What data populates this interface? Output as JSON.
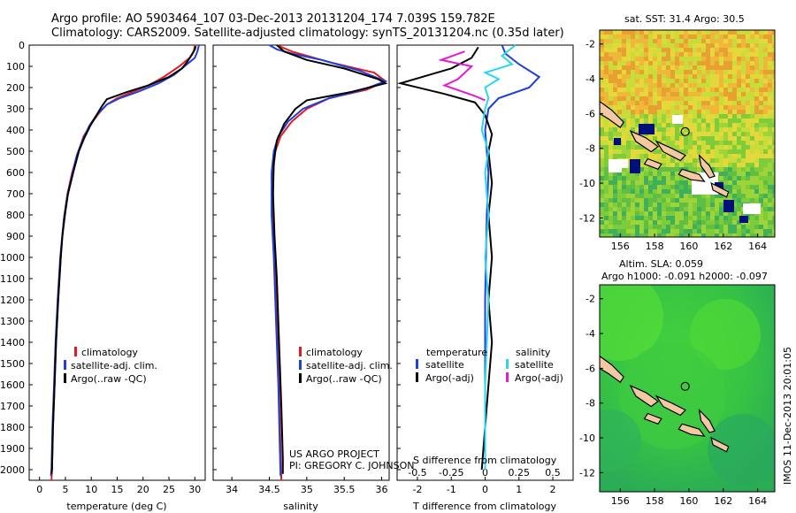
{
  "header": {
    "line1": "Argo profile: AO 5903464_107 03-Dec-2013 20131204_174 7.039S 159.782E",
    "line2": "Climatology: CARS2009. Satellite-adjusted climatology: synTS_20131204.nc (0.35d later)"
  },
  "colors": {
    "climatology": "#e41a1c",
    "satellite": "#1f3fe0",
    "argo": "#000000",
    "sat_salt": "#29d6f0",
    "argo_salt": "#e617d6"
  },
  "depth_axis": {
    "ticks": [
      "0",
      "100",
      "200",
      "300",
      "400",
      "500",
      "600",
      "700",
      "800",
      "900",
      "1000",
      "1100",
      "1200",
      "1300",
      "1400",
      "1500",
      "1600",
      "1700",
      "1800",
      "1900",
      "2000"
    ],
    "max": 2050
  },
  "chart_data": [
    {
      "type": "line",
      "name": "temperature-profile",
      "xlabel": "temperature (deg C)",
      "ylabel": "depth",
      "xlim": [
        -2,
        32
      ],
      "ylim": [
        2050,
        0
      ],
      "xticks": [
        "0",
        "5",
        "10",
        "15",
        "20",
        "25",
        "30"
      ],
      "legend": [
        "climatology",
        "satellite-adj. clim.",
        "Argo(..raw -QC)"
      ],
      "series": [
        {
          "name": "climatology",
          "color": "#e41a1c",
          "points": [
            [
              30,
              0
            ],
            [
              29.8,
              30
            ],
            [
              29,
              60
            ],
            [
              27,
              100
            ],
            [
              24,
              150
            ],
            [
              21,
              190
            ],
            [
              18,
              220
            ],
            [
              15,
              250
            ],
            [
              13,
              280
            ],
            [
              11.5,
              320
            ],
            [
              10,
              370
            ],
            [
              8.5,
              430
            ],
            [
              7.5,
              500
            ],
            [
              6.3,
              600
            ],
            [
              5.4,
              700
            ],
            [
              4.8,
              800
            ],
            [
              4.4,
              900
            ],
            [
              4.1,
              1000
            ],
            [
              3.6,
              1200
            ],
            [
              3.2,
              1400
            ],
            [
              2.9,
              1600
            ],
            [
              2.6,
              1800
            ],
            [
              2.4,
              2000
            ],
            [
              2.3,
              2050
            ]
          ]
        },
        {
          "name": "satellite-adj. clim.",
          "color": "#1f3fe0",
          "points": [
            [
              30.8,
              0
            ],
            [
              30.5,
              30
            ],
            [
              30,
              60
            ],
            [
              28,
              100
            ],
            [
              26,
              140
            ],
            [
              23,
              180
            ],
            [
              19,
              220
            ],
            [
              15.5,
              250
            ],
            [
              13,
              280
            ],
            [
              11,
              330
            ],
            [
              9.6,
              380
            ],
            [
              8.3,
              450
            ],
            [
              7.2,
              520
            ],
            [
              6.2,
              620
            ],
            [
              5.3,
              720
            ],
            [
              4.7,
              820
            ],
            [
              4.3,
              920
            ],
            [
              4.0,
              1000
            ],
            [
              3.5,
              1200
            ],
            [
              3.1,
              1400
            ],
            [
              2.8,
              1600
            ],
            [
              2.5,
              1800
            ],
            [
              2.3,
              2000
            ],
            [
              2.2,
              2030
            ]
          ]
        },
        {
          "name": "Argo(..raw -QC)",
          "color": "#000000",
          "points": [
            [
              30.2,
              5
            ],
            [
              30,
              20
            ],
            [
              29.3,
              50
            ],
            [
              28.5,
              80
            ],
            [
              27.5,
              110
            ],
            [
              25,
              150
            ],
            [
              21,
              190
            ],
            [
              17,
              220
            ],
            [
              13,
              255
            ],
            [
              12,
              290
            ],
            [
              11,
              330
            ],
            [
              9.8,
              380
            ],
            [
              8.6,
              440
            ],
            [
              7.6,
              500
            ],
            [
              6.5,
              600
            ],
            [
              5.5,
              700
            ],
            [
              4.9,
              800
            ],
            [
              4.4,
              900
            ],
            [
              4.1,
              1000
            ],
            [
              3.6,
              1200
            ],
            [
              3.2,
              1400
            ],
            [
              2.9,
              1600
            ],
            [
              2.6,
              1800
            ],
            [
              2.4,
              2000
            ],
            [
              2.3,
              2020
            ]
          ]
        }
      ]
    },
    {
      "type": "line",
      "name": "salinity-profile",
      "xlabel": "salinity",
      "xlim": [
        33.75,
        36.1
      ],
      "ylim": [
        2050,
        0
      ],
      "xticks": [
        "34",
        "34.5",
        "35",
        "35.5",
        "36"
      ],
      "legend": [
        "climatology",
        "satellite-adj. clim.",
        "Argo(..raw -QC)"
      ],
      "annotation": [
        "US ARGO PROJECT",
        "PI: GREGORY C. JOHNSON"
      ],
      "series": [
        {
          "name": "climatology",
          "color": "#e41a1c",
          "points": [
            [
              34.6,
              0
            ],
            [
              34.8,
              30
            ],
            [
              35.3,
              80
            ],
            [
              35.9,
              130
            ],
            [
              36.05,
              170
            ],
            [
              35.8,
              210
            ],
            [
              35.3,
              250
            ],
            [
              35.0,
              300
            ],
            [
              34.8,
              360
            ],
            [
              34.65,
              430
            ],
            [
              34.58,
              500
            ],
            [
              34.55,
              600
            ],
            [
              34.55,
              800
            ],
            [
              34.58,
              1000
            ],
            [
              34.6,
              1300
            ],
            [
              34.63,
              1600
            ],
            [
              34.65,
              1900
            ],
            [
              34.66,
              2050
            ]
          ]
        },
        {
          "name": "satellite-adj. clim.",
          "color": "#1f3fe0",
          "points": [
            [
              34.5,
              0
            ],
            [
              34.6,
              20
            ],
            [
              34.8,
              40
            ],
            [
              35.2,
              70
            ],
            [
              35.7,
              120
            ],
            [
              36.05,
              170
            ],
            [
              35.75,
              210
            ],
            [
              35.3,
              250
            ],
            [
              34.95,
              300
            ],
            [
              34.75,
              360
            ],
            [
              34.62,
              430
            ],
            [
              34.56,
              500
            ],
            [
              34.53,
              600
            ],
            [
              34.53,
              800
            ],
            [
              34.56,
              1000
            ],
            [
              34.59,
              1300
            ],
            [
              34.62,
              1600
            ],
            [
              34.64,
              1900
            ],
            [
              34.65,
              2030
            ]
          ]
        },
        {
          "name": "Argo(..raw -QC)",
          "color": "#000000",
          "points": [
            [
              34.6,
              0
            ],
            [
              34.7,
              30
            ],
            [
              35.0,
              70
            ],
            [
              35.5,
              110
            ],
            [
              35.95,
              160
            ],
            [
              36.05,
              180
            ],
            [
              35.6,
              220
            ],
            [
              35.0,
              260
            ],
            [
              34.85,
              300
            ],
            [
              34.7,
              370
            ],
            [
              34.6,
              450
            ],
            [
              34.56,
              550
            ],
            [
              34.55,
              700
            ],
            [
              34.57,
              900
            ],
            [
              34.6,
              1100
            ],
            [
              34.63,
              1400
            ],
            [
              34.66,
              1700
            ],
            [
              34.68,
              1950
            ],
            [
              34.68,
              2020
            ]
          ]
        }
      ]
    },
    {
      "type": "line",
      "name": "difference-profile",
      "xlabel": "T difference from climatology",
      "xlabel_top": "S difference from climatology",
      "xlim": [
        -2.6,
        2.6
      ],
      "ylim": [
        2050,
        0
      ],
      "xticks": [
        "-2",
        "-1",
        "0",
        "1",
        "2"
      ],
      "xticks_top": [
        "-0.5",
        "-0.25",
        "0",
        "0.25",
        "0.5"
      ],
      "legend_titles": [
        "temperature",
        "salinity"
      ],
      "legend": [
        "satellite",
        "Argo(-adj)",
        "satellite",
        "Argo(-adj)"
      ],
      "series": [
        {
          "name": "T satellite",
          "color": "#1f3fe0",
          "points": [
            [
              0.5,
              0
            ],
            [
              0.6,
              40
            ],
            [
              1.0,
              90
            ],
            [
              1.6,
              150
            ],
            [
              1.3,
              200
            ],
            [
              0.4,
              250
            ],
            [
              0.1,
              300
            ],
            [
              0,
              400
            ],
            [
              0.1,
              600
            ],
            [
              0.05,
              800
            ],
            [
              0,
              1200
            ],
            [
              0,
              2000
            ]
          ]
        },
        {
          "name": "T Argo(-adj)",
          "color": "#000000",
          "points": [
            [
              -0.2,
              10
            ],
            [
              -0.4,
              60
            ],
            [
              -1.0,
              110
            ],
            [
              -2.5,
              180
            ],
            [
              -1.2,
              230
            ],
            [
              -0.3,
              270
            ],
            [
              0,
              330
            ],
            [
              0.2,
              420
            ],
            [
              0.1,
              500
            ],
            [
              0.2,
              650
            ],
            [
              0.1,
              800
            ],
            [
              0.2,
              1000
            ],
            [
              0.1,
              1200
            ],
            [
              0.2,
              1400
            ],
            [
              0.1,
              1600
            ],
            [
              0,
              1800
            ],
            [
              -0.1,
              2000
            ]
          ]
        },
        {
          "name": "S satellite",
          "color": "#29d6f0",
          "points": [
            [
              0.9,
              0
            ],
            [
              0.5,
              50
            ],
            [
              0.8,
              90
            ],
            [
              0,
              130
            ],
            [
              0.4,
              160
            ],
            [
              0,
              200
            ],
            [
              0.1,
              250
            ],
            [
              0,
              300
            ],
            [
              -0.1,
              400
            ],
            [
              0.1,
              500
            ],
            [
              0,
              600
            ],
            [
              0.1,
              800
            ],
            [
              0,
              1000
            ],
            [
              0.1,
              1200
            ],
            [
              0,
              1600
            ],
            [
              0,
              2000
            ]
          ]
        },
        {
          "name": "S Argo(-adj)",
          "color": "#e617d6",
          "points": [
            [
              -0.6,
              30
            ],
            [
              -1.3,
              70
            ],
            [
              -0.4,
              100
            ],
            [
              -0.8,
              160
            ],
            [
              -1.2,
              190
            ],
            [
              -0.3,
              240
            ],
            [
              0,
              260
            ]
          ]
        }
      ]
    }
  ],
  "map_sst": {
    "title": "sat. SST: 31.4  Argo: 30.5",
    "xticks": [
      "156",
      "158",
      "160",
      "162",
      "164"
    ],
    "yticks": [
      "-2",
      "-4",
      "-6",
      "-8",
      "-10",
      "-12"
    ],
    "argo_lon": 159.782,
    "argo_lat": -7.039
  },
  "map_sla": {
    "title1": "Altim. SLA: 0.059",
    "title2": "Argo h1000: -0.091  h2000: -0.097",
    "xticks": [
      "156",
      "158",
      "160",
      "162",
      "164"
    ],
    "yticks": [
      "-2",
      "-4",
      "-6",
      "-8",
      "-10",
      "-12"
    ]
  },
  "side_caption": "IMOS 11-Dec-2013 20:01:05"
}
